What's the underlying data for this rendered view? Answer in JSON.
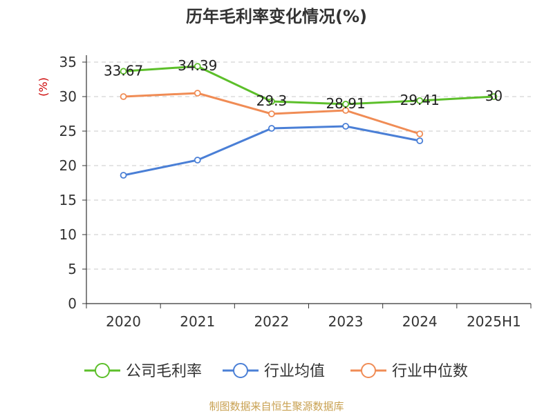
{
  "chart_data": {
    "type": "line",
    "title": "历年毛利率变化情况(%)",
    "ylabel": "(%)",
    "xlabel": "",
    "categories": [
      "2020",
      "2021",
      "2022",
      "2023",
      "2024",
      "2025H1"
    ],
    "ylim": [
      0,
      35
    ],
    "yticks": [
      0,
      5,
      10,
      15,
      20,
      25,
      30,
      35
    ],
    "grid": true,
    "legend_position": "bottom",
    "series": [
      {
        "name": "公司毛利率",
        "color": "#5cbf2a",
        "values": [
          33.67,
          34.39,
          29.3,
          28.91,
          29.41,
          30
        ],
        "labels": [
          "33.67",
          "34.39",
          "29.3",
          "28.91",
          "29.41",
          "30"
        ]
      },
      {
        "name": "行业均值",
        "color": "#4a7fd6",
        "values": [
          18.6,
          20.8,
          25.4,
          25.7,
          23.6,
          null
        ]
      },
      {
        "name": "行业中位数",
        "color": "#f08c55",
        "values": [
          30.0,
          30.5,
          27.5,
          28.0,
          24.6,
          null
        ]
      }
    ]
  },
  "footer": {
    "source": "制图数据来自恒生聚源数据库"
  }
}
